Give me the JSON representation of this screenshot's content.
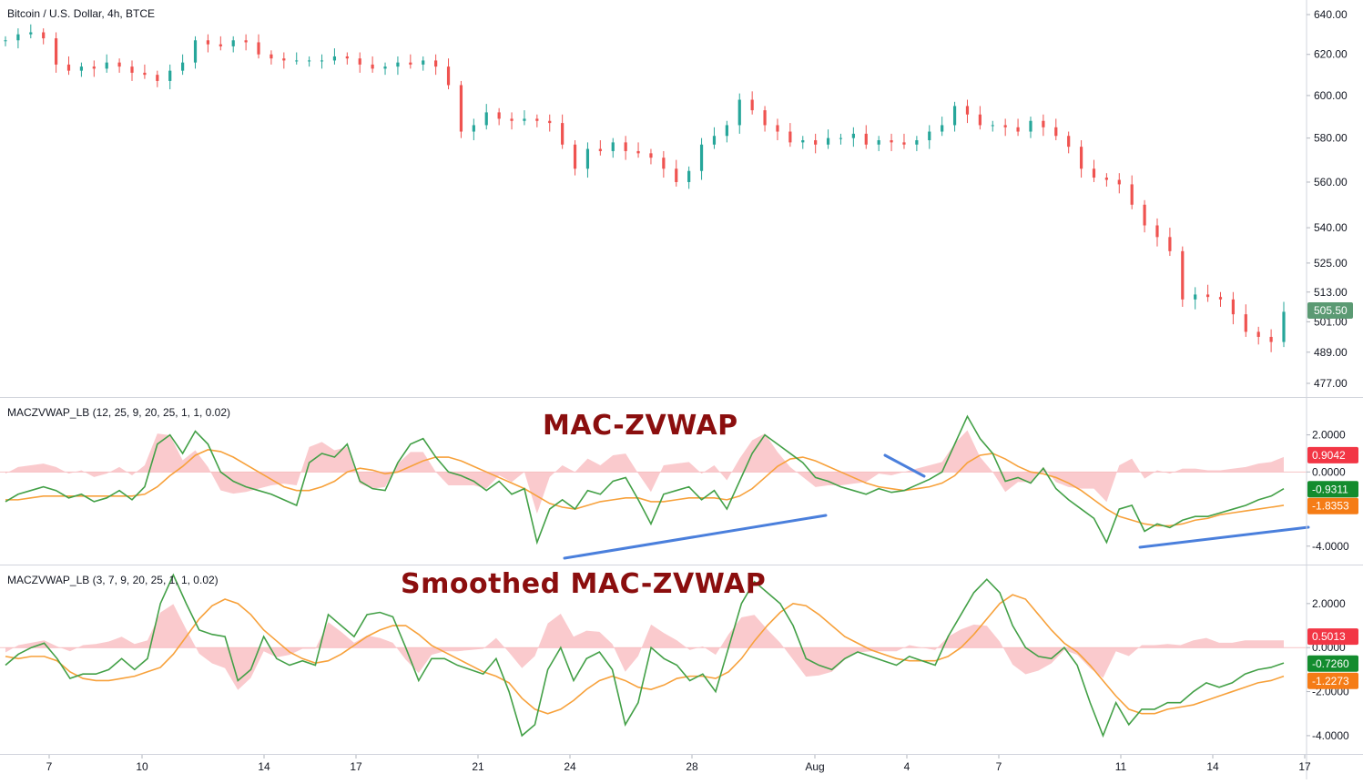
{
  "chart_title": "Bitcoin / U.S. Dollar, 4h, BTCE",
  "price_pane": {
    "y_ticks": [
      "640.00",
      "620.00",
      "600.00",
      "580.00",
      "560.00",
      "540.00",
      "525.00",
      "513.00",
      "501.00",
      "489.00",
      "477.00"
    ],
    "last_price_label": "505.50",
    "last_price_color": "#5b9a73"
  },
  "indicator_1": {
    "title": "MACZVWAP_LB (12, 25, 9, 20, 25, 1, 1, 0.02)",
    "overlay_label": "MAC-ZVWAP",
    "y_ticks": [
      "2.0000",
      "0.0000",
      "-4.0000"
    ],
    "badges": [
      {
        "text": "0.9042",
        "color": "#f23645"
      },
      {
        "text": "-0.9311",
        "color": "#138c2e"
      },
      {
        "text": "-1.8353",
        "color": "#f57c16"
      }
    ]
  },
  "indicator_2": {
    "title": "MACZVWAP_LB (3, 7, 9, 20, 25, 1, 1, 0.02)",
    "overlay_label": "Smoothed MAC-ZVWAP",
    "y_ticks": [
      "2.0000",
      "0.0000",
      "-2.0000",
      "-4.0000"
    ],
    "badges": [
      {
        "text": "0.5013",
        "color": "#f23645"
      },
      {
        "text": "-0.7260",
        "color": "#138c2e"
      },
      {
        "text": "-1.2273",
        "color": "#f57c16"
      }
    ]
  },
  "x_axis": {
    "labels": [
      "7",
      "10",
      "14",
      "17",
      "21",
      "24",
      "28",
      "Aug",
      "4",
      "7",
      "11",
      "14",
      "17"
    ]
  },
  "colors": {
    "up_candle": "#26a69a",
    "down_candle": "#ef5350",
    "signal_line": "#43a047",
    "average_line": "#f7a13b",
    "histogram": "#f8b8bc",
    "trendline": "#4a7fdc",
    "grid": "#e6e6e6"
  },
  "chart_data": [
    {
      "type": "line",
      "title": "Bitcoin / U.S. Dollar, 4h, BTCE",
      "series": [
        {
          "values": [
            627,
            630,
            631,
            628,
            615,
            612,
            614,
            613,
            616,
            614,
            611,
            610,
            607,
            612,
            616,
            627,
            625,
            624,
            627,
            626,
            620,
            618,
            617,
            617,
            617,
            617,
            619,
            618,
            615,
            613,
            614,
            616,
            615,
            617,
            614,
            605,
            583,
            586,
            592,
            589,
            588,
            589,
            588,
            587,
            577,
            566,
            575,
            574,
            578,
            574,
            573,
            571,
            566,
            560,
            565,
            577,
            581,
            586,
            598,
            593,
            586,
            583,
            578,
            579,
            577,
            580,
            580,
            582,
            577,
            579,
            578,
            577,
            579,
            583,
            586,
            595,
            591,
            586,
            586,
            585,
            583,
            588,
            585,
            581,
            576,
            566,
            562,
            561,
            559,
            550,
            541,
            536,
            530,
            510,
            512,
            511,
            510,
            504,
            497,
            495,
            493,
            505
          ]
        }
      ],
      "ylim": [
        477,
        640
      ]
    },
    {
      "type": "line",
      "title": "MACZVWAP_LB (12, 25, 9, 20, 25, 1, 1, 0.02)",
      "series": [
        {
          "values": [
            -1.6,
            -1.2,
            -1.0,
            -0.8,
            -1.0,
            -1.4,
            -1.2,
            -1.6,
            -1.4,
            -1.0,
            -1.5,
            -0.8,
            1.5,
            2.0,
            1.0,
            2.2,
            1.5,
            0.0,
            -0.5,
            -0.8,
            -1.0,
            -1.2,
            -1.5,
            -1.8,
            0.5,
            1.0,
            0.8,
            1.5,
            -0.5,
            -0.9,
            -1.0,
            0.5,
            1.5,
            1.8,
            0.8,
            0.0,
            -0.2,
            -0.5,
            -1.0,
            -0.5,
            -1.2,
            -0.9,
            -3.8,
            -2.0,
            -1.5,
            -2.0,
            -1.0,
            -1.2,
            -0.5,
            -0.3,
            -1.5,
            -2.8,
            -1.2,
            -1.0,
            -0.8,
            -1.5,
            -1.0,
            -2.0,
            -0.5,
            1.0,
            2.0,
            1.5,
            1.0,
            0.5,
            -0.3,
            -0.5,
            -0.8,
            -1.0,
            -1.2,
            -0.9,
            -1.1,
            -1.0,
            -0.7,
            -0.4,
            0.0,
            1.5,
            3.0,
            1.8,
            1.0,
            -0.5,
            -0.3,
            -0.6,
            0.2,
            -0.9,
            -1.5,
            -2.0,
            -2.5,
            -3.8,
            -2.0,
            -1.8,
            -3.2,
            -2.8,
            -3.0,
            -2.6,
            -2.4,
            -2.4,
            -2.2,
            -2.0,
            -1.8,
            -1.5,
            -1.3,
            -0.9
          ]
        },
        {
          "values": [
            -1.5,
            -1.5,
            -1.4,
            -1.3,
            -1.3,
            -1.3,
            -1.3,
            -1.3,
            -1.3,
            -1.3,
            -1.3,
            -1.2,
            -0.8,
            -0.2,
            0.3,
            0.9,
            1.2,
            1.1,
            0.8,
            0.4,
            0.0,
            -0.4,
            -0.8,
            -1.0,
            -1.0,
            -0.8,
            -0.5,
            0.0,
            0.2,
            0.1,
            -0.1,
            0.0,
            0.3,
            0.6,
            0.8,
            0.8,
            0.6,
            0.3,
            0.0,
            -0.3,
            -0.6,
            -0.9,
            -1.3,
            -1.7,
            -1.9,
            -2.0,
            -1.8,
            -1.6,
            -1.5,
            -1.4,
            -1.4,
            -1.6,
            -1.6,
            -1.5,
            -1.4,
            -1.4,
            -1.4,
            -1.5,
            -1.3,
            -0.9,
            -0.3,
            0.3,
            0.7,
            0.8,
            0.6,
            0.3,
            0.0,
            -0.3,
            -0.6,
            -0.8,
            -0.9,
            -1.0,
            -0.9,
            -0.8,
            -0.6,
            -0.2,
            0.5,
            0.9,
            1.0,
            0.7,
            0.3,
            0.0,
            -0.1,
            -0.3,
            -0.6,
            -1.0,
            -1.5,
            -2.0,
            -2.4,
            -2.6,
            -2.8,
            -2.9,
            -2.9,
            -2.8,
            -2.6,
            -2.5,
            -2.3,
            -2.2,
            -2.1,
            -2.0,
            -1.9,
            -1.8
          ]
        }
      ],
      "ylim": [
        -4.6,
        3.6
      ]
    },
    {
      "type": "line",
      "title": "MACZVWAP_LB (3, 7, 9, 20, 25, 1, 1, 0.02)",
      "series": [
        {
          "values": [
            -0.8,
            -0.3,
            0.0,
            0.2,
            -0.5,
            -1.4,
            -1.2,
            -1.2,
            -1.0,
            -0.5,
            -1.0,
            -0.5,
            2.0,
            3.3,
            2.0,
            0.8,
            0.6,
            0.5,
            -1.5,
            -1.0,
            0.5,
            -0.5,
            -0.8,
            -0.6,
            -0.8,
            1.5,
            1.0,
            0.5,
            1.5,
            1.6,
            1.4,
            0.0,
            -1.5,
            -0.5,
            -0.5,
            -0.8,
            -1.0,
            -1.2,
            -0.5,
            -2.0,
            -4.0,
            -3.5,
            -1.0,
            0.0,
            -1.5,
            -0.5,
            -0.2,
            -1.0,
            -3.5,
            -2.5,
            0.0,
            -0.5,
            -0.8,
            -1.5,
            -1.2,
            -2.0,
            0.0,
            2.0,
            3.0,
            2.5,
            2.0,
            1.0,
            -0.5,
            -0.8,
            -1.0,
            -0.5,
            -0.2,
            -0.4,
            -0.6,
            -0.8,
            -0.4,
            -0.6,
            -0.8,
            0.5,
            1.5,
            2.5,
            3.1,
            2.5,
            1.0,
            0.0,
            -0.4,
            -0.5,
            0.0,
            -0.8,
            -2.5,
            -4.0,
            -2.5,
            -3.5,
            -2.8,
            -2.8,
            -2.5,
            -2.5,
            -2.0,
            -1.6,
            -1.8,
            -1.6,
            -1.2,
            -1.0,
            -0.9,
            -0.7
          ]
        },
        {
          "values": [
            -0.4,
            -0.5,
            -0.4,
            -0.4,
            -0.6,
            -1.1,
            -1.4,
            -1.5,
            -1.5,
            -1.4,
            -1.3,
            -1.1,
            -0.9,
            -0.3,
            0.5,
            1.3,
            1.9,
            2.2,
            2.0,
            1.5,
            0.8,
            0.3,
            -0.2,
            -0.5,
            -0.7,
            -0.6,
            -0.3,
            0.1,
            0.5,
            0.8,
            1.0,
            1.0,
            0.6,
            0.1,
            -0.2,
            -0.5,
            -0.8,
            -1.1,
            -1.3,
            -1.6,
            -2.3,
            -2.8,
            -3.0,
            -2.8,
            -2.4,
            -1.9,
            -1.5,
            -1.3,
            -1.5,
            -1.8,
            -1.9,
            -1.7,
            -1.4,
            -1.3,
            -1.3,
            -1.4,
            -1.1,
            -0.5,
            0.3,
            1.0,
            1.6,
            2.0,
            1.9,
            1.5,
            1.0,
            0.5,
            0.2,
            -0.1,
            -0.3,
            -0.5,
            -0.6,
            -0.6,
            -0.6,
            -0.4,
            0.0,
            0.6,
            1.3,
            2.0,
            2.4,
            2.2,
            1.5,
            0.8,
            0.2,
            -0.2,
            -0.8,
            -1.5,
            -2.2,
            -2.8,
            -3.0,
            -3.0,
            -2.8,
            -2.7,
            -2.6,
            -2.4,
            -2.2,
            -2.0,
            -1.8,
            -1.6,
            -1.5,
            -1.3
          ]
        }
      ],
      "ylim": [
        -4.5,
        3.4
      ]
    }
  ]
}
